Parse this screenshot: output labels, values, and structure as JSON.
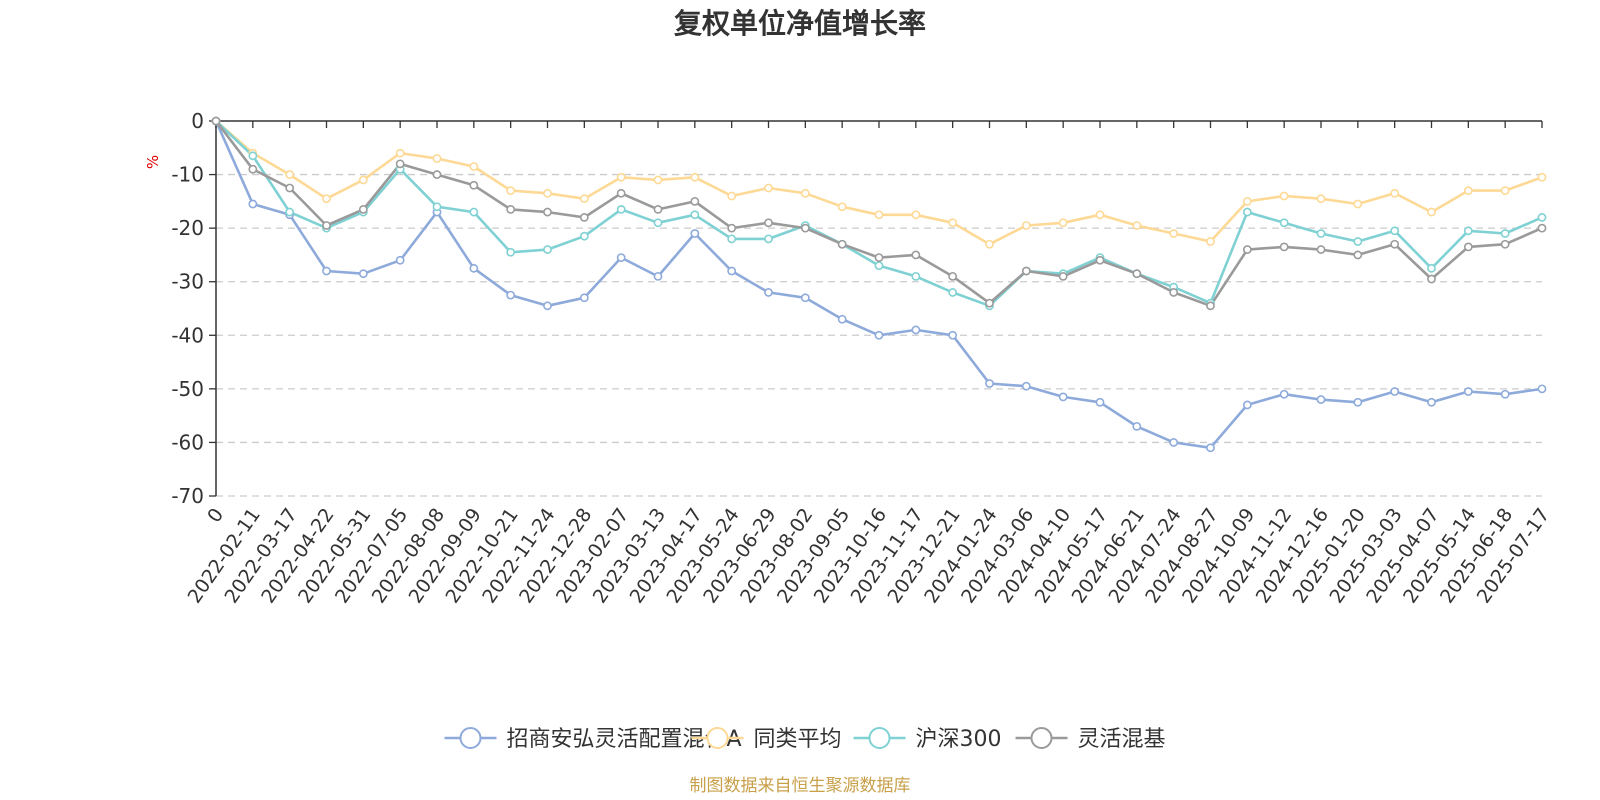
{
  "chart_data": {
    "type": "line",
    "title": "复权单位净值增长率",
    "ylabel": "%",
    "ylim": [
      -70,
      0
    ],
    "yticks": [
      "0",
      "-10",
      "-20",
      "-30",
      "-40",
      "-50",
      "-60",
      "-70"
    ],
    "x_tick_labels": [
      "0",
      "2022-02-11",
      "2022-03-17",
      "2022-04-22",
      "2022-05-31",
      "2022-07-05",
      "2022-08-08",
      "2022-09-09",
      "2022-10-21",
      "2022-11-24",
      "2022-12-28",
      "2023-02-07",
      "2023-03-13",
      "2023-04-17",
      "2023-05-24",
      "2023-06-29",
      "2023-08-02",
      "2023-09-05",
      "2023-10-16",
      "2023-11-17",
      "2023-12-21",
      "2024-01-24",
      "2024-03-06",
      "2024-04-10",
      "2024-05-17",
      "2024-06-21",
      "2024-07-24",
      "2024-08-27",
      "2024-10-09",
      "2024-11-12",
      "2024-12-16",
      "2025-01-20",
      "2025-03-03",
      "2025-04-07",
      "2025-05-14",
      "2025-06-18",
      "2025-07-17"
    ],
    "grid": true,
    "legend_position": "bottom",
    "series": [
      {
        "name": "招商安弘灵活配置混合A",
        "color": "#8eaadb",
        "values": [
          0,
          -15.5,
          -17.5,
          -28,
          -28.5,
          -26,
          -17,
          -27.5,
          -32.5,
          -34.5,
          -33,
          -25.5,
          -29,
          -21,
          -28,
          -32,
          -33,
          -37,
          -40,
          -39,
          -40,
          -49,
          -49.5,
          -51.5,
          -52.5,
          -57,
          -60,
          -61,
          -53,
          -51,
          -52,
          -52.5,
          -50.5,
          -52.5,
          -50.5,
          -51,
          -50
        ]
      },
      {
        "name": "同类平均",
        "color": "#fdd995",
        "values": [
          0,
          -6,
          -10,
          -14.5,
          -11,
          -6,
          -7,
          -8.5,
          -13,
          -13.5,
          -14.5,
          -10.5,
          -11,
          -10.5,
          -14,
          -12.5,
          -13.5,
          -16,
          -17.5,
          -17.5,
          -19,
          -23,
          -19.5,
          -19,
          -17.5,
          -19.5,
          -21,
          -22.5,
          -15,
          -14,
          -14.5,
          -15.5,
          -13.5,
          -17,
          -13,
          -13,
          -10.5
        ]
      },
      {
        "name": "沪深300",
        "color": "#7fd1d3",
        "values": [
          0,
          -6.5,
          -17,
          -20,
          -17,
          -9,
          -16,
          -17,
          -24.5,
          -24,
          -21.5,
          -16.5,
          -19,
          -17.5,
          -22,
          -22,
          -19.5,
          -23,
          -27,
          -29,
          -32,
          -34.5,
          -28,
          -28.5,
          -25.5,
          -28.5,
          -31,
          -34,
          -17,
          -19,
          -21,
          -22.5,
          -20.5,
          -27.5,
          -20.5,
          -21,
          -18
        ]
      },
      {
        "name": "灵活混基",
        "color": "#9a9a9a",
        "values": [
          0,
          -9,
          -12.5,
          -19.5,
          -16.5,
          -8,
          -10,
          -12,
          -16.5,
          -17,
          -18,
          -13.5,
          -16.5,
          -15,
          -20,
          -19,
          -20,
          -23,
          -25.5,
          -25,
          -29,
          -34,
          -28,
          -29,
          -26,
          -28.5,
          -32,
          -34.5,
          -24,
          -23.5,
          -24,
          -25,
          -23,
          -29.5,
          -23.5,
          -23,
          -20
        ]
      }
    ]
  },
  "legend": {
    "items": [
      "招商安弘灵活配置混合A",
      "同类平均",
      "沪深300",
      "灵活混基"
    ]
  },
  "source": "制图数据来自恒生聚源数据库"
}
